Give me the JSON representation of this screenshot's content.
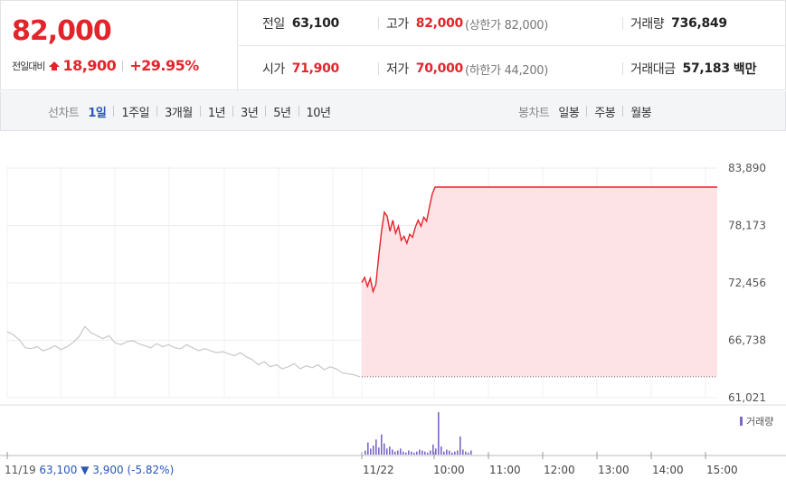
{
  "quote": {
    "price": "82,000",
    "change_label": "전일대비",
    "change_value": "18,900",
    "change_pct": "+29.95%",
    "stats": {
      "prev_close": {
        "label": "전일",
        "value": "63,100"
      },
      "high": {
        "label": "고가",
        "value": "82,000",
        "sub": "(상한가 82,000)"
      },
      "volume": {
        "label": "거래량",
        "value": "736,849"
      },
      "open": {
        "label": "시가",
        "value": "71,900"
      },
      "low": {
        "label": "저가",
        "value": "70,000",
        "sub": "(하한가 44,200)"
      },
      "trade_amount": {
        "label": "거래대금",
        "value": "57,183",
        "unit": "백만"
      }
    }
  },
  "tabs": {
    "line_label": "선차트",
    "line_tabs": [
      "1일",
      "1주일",
      "3개월",
      "1년",
      "3년",
      "5년",
      "10년"
    ],
    "line_active": 0,
    "candle_label": "봉차트",
    "candle_tabs": [
      "일봉",
      "주봉",
      "월봉"
    ]
  },
  "colors": {
    "up": "#e3242b",
    "down": "#2a55b9",
    "today_fill": "#fde3e5",
    "prev_line": "#c8c8c8",
    "volume_bar": "#7b68c4"
  },
  "chart_data": {
    "type": "line",
    "y_ticks": [
      "83,890",
      "78,173",
      "72,456",
      "66,738",
      "61,021"
    ],
    "ylim": [
      61021,
      83890
    ],
    "x_ticks": [
      "11/22",
      "10:00",
      "11:00",
      "12:00",
      "13:00",
      "14:00",
      "15:00"
    ],
    "grid": true,
    "volume_label": "거래량",
    "prev_day": {
      "date": "11/19",
      "close": "63,100",
      "change": "▼ 3,900",
      "change_pct": "(-5.82%)",
      "values": [
        67600,
        67300,
        66800,
        66000,
        65900,
        66100,
        65700,
        65900,
        66200,
        65800,
        66100,
        66500,
        67100,
        68100,
        67500,
        67200,
        66900,
        67200,
        66500,
        66300,
        66600,
        66700,
        66400,
        66200,
        66000,
        66400,
        66100,
        66300,
        66000,
        65900,
        66300,
        66000,
        65700,
        65900,
        65700,
        65500,
        65600,
        65400,
        65200,
        65500,
        65100,
        64800,
        64300,
        64600,
        64100,
        64300,
        63900,
        64100,
        64400,
        63900,
        64200,
        64000,
        64300,
        63800,
        64100,
        63900,
        63500,
        63400,
        63300,
        63100
      ]
    },
    "today": {
      "baseline": 63100,
      "values": [
        72500,
        73000,
        72100,
        72900,
        71600,
        72300,
        75100,
        77600,
        79500,
        79100,
        77600,
        78700,
        77400,
        78100,
        76700,
        77100,
        76400,
        77300,
        77000,
        78000,
        78700,
        78100,
        79000,
        78600,
        80000,
        81300,
        82000,
        82000,
        82000,
        82000,
        82000,
        82000,
        82000,
        82000,
        82000,
        82000,
        82000,
        82000,
        82000,
        82000,
        82000,
        82000,
        82000,
        82000,
        82000,
        82000,
        82000,
        82000,
        82000,
        82000
      ]
    },
    "volume": [
      4,
      12,
      6,
      9,
      15,
      7,
      20,
      11,
      6,
      8,
      5,
      3,
      4,
      6,
      3,
      2,
      4,
      3,
      2,
      3,
      5,
      4,
      3,
      2,
      4,
      10,
      6,
      42,
      8,
      3,
      5,
      4,
      2,
      3,
      4,
      18,
      5,
      3,
      2,
      4
    ]
  }
}
